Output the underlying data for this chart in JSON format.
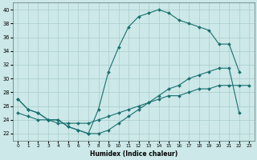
{
  "xlabel": "Humidex (Indice chaleur)",
  "bg_color": "#cce8e8",
  "grid_color": "#aacccc",
  "line_color": "#1a7070",
  "xlim": [
    -0.5,
    23.5
  ],
  "ylim": [
    21.0,
    41.0
  ],
  "xticks": [
    0,
    1,
    2,
    3,
    4,
    5,
    6,
    7,
    8,
    9,
    10,
    11,
    12,
    13,
    14,
    15,
    16,
    17,
    18,
    19,
    20,
    21,
    22,
    23
  ],
  "yticks": [
    22,
    24,
    26,
    28,
    30,
    32,
    34,
    36,
    38,
    40
  ],
  "curve1_x": [
    0,
    1,
    2,
    3,
    4,
    5,
    6,
    7,
    8,
    9,
    10,
    11,
    12,
    13,
    14,
    15,
    16,
    17,
    18,
    19,
    20,
    21,
    22
  ],
  "curve1_y": [
    27.0,
    25.5,
    25.0,
    24.0,
    24.0,
    23.0,
    22.5,
    22.0,
    25.5,
    31.0,
    34.5,
    37.5,
    39.0,
    39.5,
    40.0,
    39.5,
    38.5,
    38.0,
    37.5,
    37.0,
    35.0,
    35.0,
    31.0
  ],
  "curve2_x": [
    0,
    1,
    2,
    3,
    4,
    5,
    6,
    7,
    8,
    9,
    10,
    11,
    12,
    13,
    14,
    15,
    16,
    17,
    18,
    19,
    20,
    21,
    22,
    23
  ],
  "curve2_y": [
    25.0,
    24.5,
    24.0,
    24.0,
    23.5,
    23.5,
    23.5,
    23.5,
    24.0,
    24.5,
    25.0,
    25.5,
    26.0,
    26.5,
    27.0,
    27.5,
    27.5,
    28.0,
    28.5,
    28.5,
    29.0,
    29.0,
    29.0,
    29.0
  ],
  "curve3_x": [
    0,
    1,
    2,
    3,
    4,
    5,
    6,
    7,
    8,
    9,
    10,
    11,
    12,
    13,
    14,
    15,
    16,
    17,
    18,
    19,
    20,
    21,
    22,
    23
  ],
  "curve3_y": [
    27.0,
    25.5,
    25.0,
    24.0,
    24.0,
    23.0,
    22.5,
    22.0,
    22.0,
    22.5,
    23.5,
    24.5,
    25.5,
    26.5,
    27.5,
    28.5,
    29.0,
    30.0,
    30.5,
    31.0,
    31.5,
    31.5,
    25.0,
    null
  ]
}
